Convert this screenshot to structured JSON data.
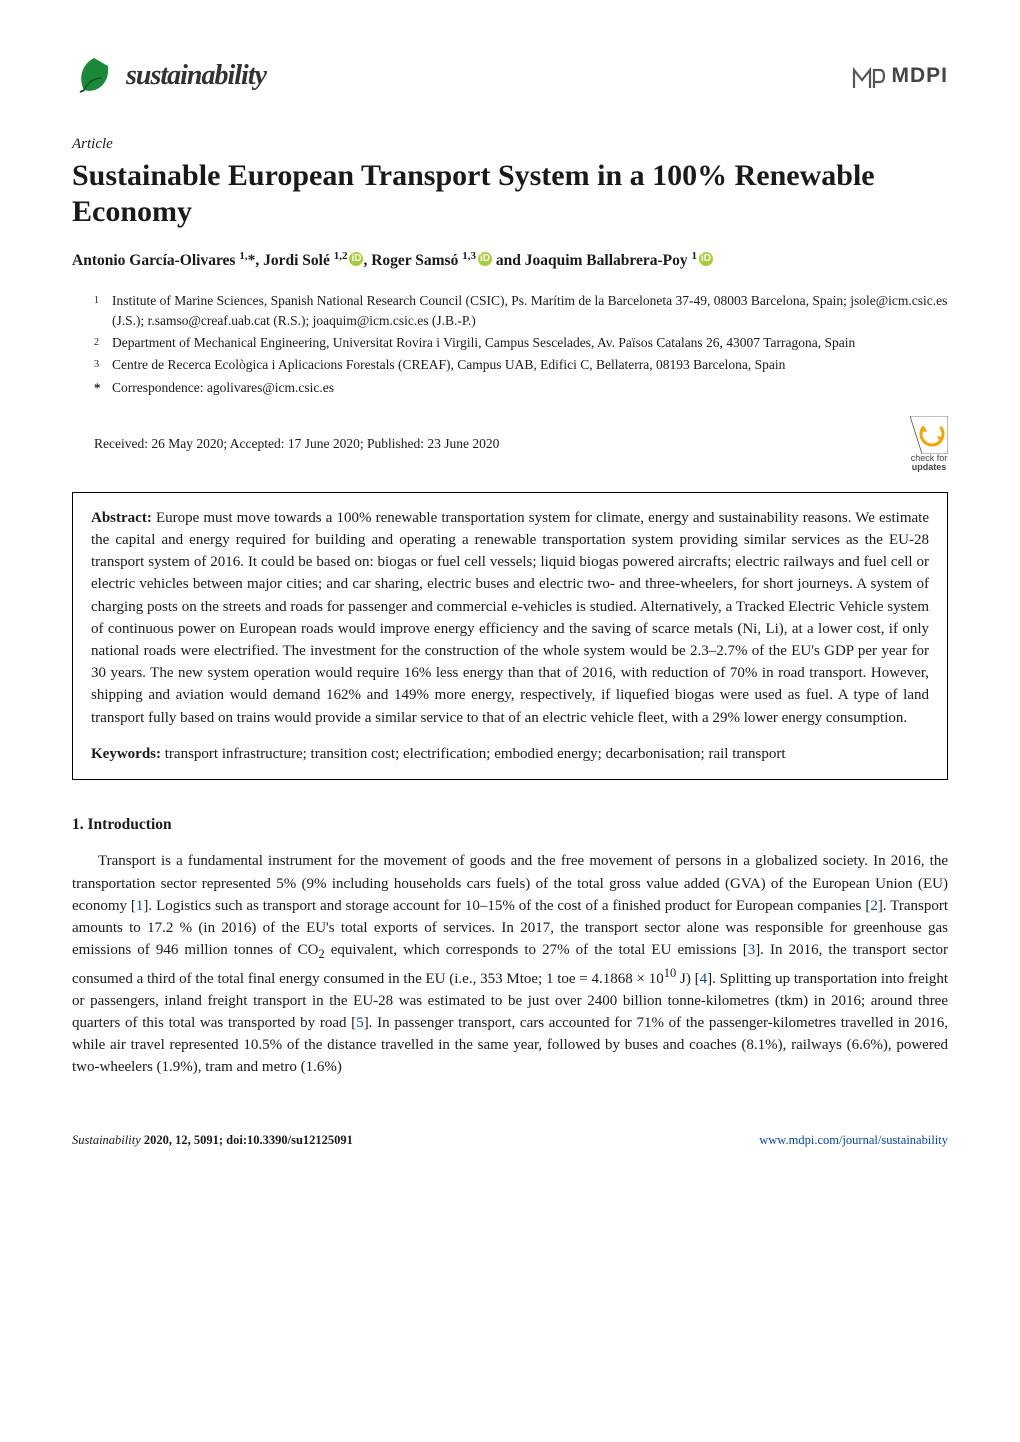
{
  "journal": {
    "name": "sustainability",
    "logo_leaf_color": "#1a8a3a",
    "logo_leaf_dark": "#0e5522"
  },
  "publisher": {
    "name": "MDPI",
    "logo_color": "#555555"
  },
  "article_type": "Article",
  "title": "Sustainable European Transport System in a 100% Renewable Economy",
  "authors_html": "Antonio García-Olivares <sup>1,</sup>*, Jordi Solé <sup>1,2</sup><span class=\"orcid\">iD</span>, Roger Samsó <sup>1,3</sup><span class=\"orcid\">iD</span> and Joaquim Ballabrera-Poy <sup>1</sup><span class=\"orcid\">iD</span>",
  "affiliations": [
    {
      "num": "1",
      "text": "Institute of Marine Sciences, Spanish National Research Council (CSIC), Ps. Marítim de la Barceloneta 37-49, 08003 Barcelona, Spain; jsole@icm.csic.es (J.S.); r.samso@creaf.uab.cat (R.S.); joaquim@icm.csic.es (J.B.-P.)"
    },
    {
      "num": "2",
      "text": "Department of Mechanical Engineering, Universitat Rovira i Virgili, Campus Sescelades, Av. Països Catalans 26, 43007 Tarragona, Spain"
    },
    {
      "num": "3",
      "text": "Centre de Recerca Ecològica i Aplicacions Forestals (CREAF), Campus UAB, Edifici C, Bellaterra, 08193 Barcelona, Spain"
    }
  ],
  "correspondence": {
    "label": "*",
    "text": "Correspondence: agolivares@icm.csic.es"
  },
  "dates": "Received: 26 May 2020; Accepted: 17 June 2020; Published: 23 June 2020",
  "check_updates": {
    "line1": "check for",
    "line2": "updates",
    "arrow_color": "#f6a500",
    "bg_color": "#ffffff",
    "border_color": "#555"
  },
  "abstract": {
    "label": "Abstract:",
    "text": "Europe must move towards a 100% renewable transportation system for climate, energy and sustainability reasons. We estimate the capital and energy required for building and operating a renewable transportation system providing similar services as the EU-28 transport system of 2016. It could be based on: biogas or fuel cell vessels; liquid biogas powered aircrafts; electric railways and fuel cell or electric vehicles between major cities; and car sharing, electric buses and electric two- and three-wheelers, for short journeys. A system of charging posts on the streets and roads for passenger and commercial e-vehicles is studied. Alternatively, a Tracked Electric Vehicle system of continuous power on European roads would improve energy efficiency and the saving of scarce metals (Ni, Li), at a lower cost, if only national roads were electrified. The investment for the construction of the whole system would be 2.3–2.7% of the EU's GDP per year for 30 years. The new system operation would require 16% less energy than that of 2016, with reduction of 70% in road transport. However, shipping and aviation would demand 162% and 149% more energy, respectively, if liquefied biogas were used as fuel. A type of land transport fully based on trains would provide a similar service to that of an electric vehicle fleet, with a 29% lower energy consumption."
  },
  "keywords": {
    "label": "Keywords:",
    "text": "transport infrastructure; transition cost; electrification; embodied energy; decarbonisation; rail transport"
  },
  "section": {
    "number": "1.",
    "title": "Introduction"
  },
  "body_paragraph": "Transport is a fundamental instrument for the movement of goods and the free movement of persons in a globalized society. In 2016, the transportation sector represented 5% (9% including households cars fuels) of the total gross value added (GVA) of the European Union (EU) economy [<span class=\"cite\">1</span>]. Logistics such as transport and storage account for 10–15% of the cost of a finished product for European companies [<span class=\"cite\">2</span>]. Transport amounts to 17.2 % (in 2016) of the EU's total exports of services. In 2017, the transport sector alone was responsible for greenhouse gas emissions of 946 million tonnes of CO<sub>2</sub> equivalent, which corresponds to 27% of the total EU emissions [<span class=\"cite\">3</span>]. In 2016, the transport sector consumed a third of the total final energy consumed in the EU (i.e., 353 Mtoe; 1 toe = 4.1868 × 10<sup>10</sup> J) [<span class=\"cite\">4</span>]. Splitting up transportation into freight or passengers, inland freight transport in the EU-28 was estimated to be just over 2400 billion tonne-kilometres (tkm) in 2016; around three quarters of this total was transported by road [<span class=\"cite\">5</span>]. In passenger transport, cars accounted for 71% of the passenger-kilometres travelled in 2016, while air travel represented 10.5% of the distance travelled in the same year, followed by buses and coaches (8.1%), railways (6.6%), powered two-wheelers (1.9%), tram and metro (1.6%)",
  "footer": {
    "left_italic": "Sustainability",
    "left_rest": " 2020, 12, 5091; doi:10.3390/su12125091",
    "right_link": "www.mdpi.com/journal/sustainability",
    "link_color": "#0645ad"
  },
  "colors": {
    "text": "#1a1a1a",
    "background": "#ffffff",
    "orcid_bg": "#a6ce39",
    "orcid_fg": "#ffffff",
    "citation": "#0645ad"
  },
  "typography": {
    "body_font": "Palatino Linotype",
    "title_pt": 30,
    "body_pt": 15,
    "affil_pt": 13.5,
    "footer_pt": 12.5
  }
}
